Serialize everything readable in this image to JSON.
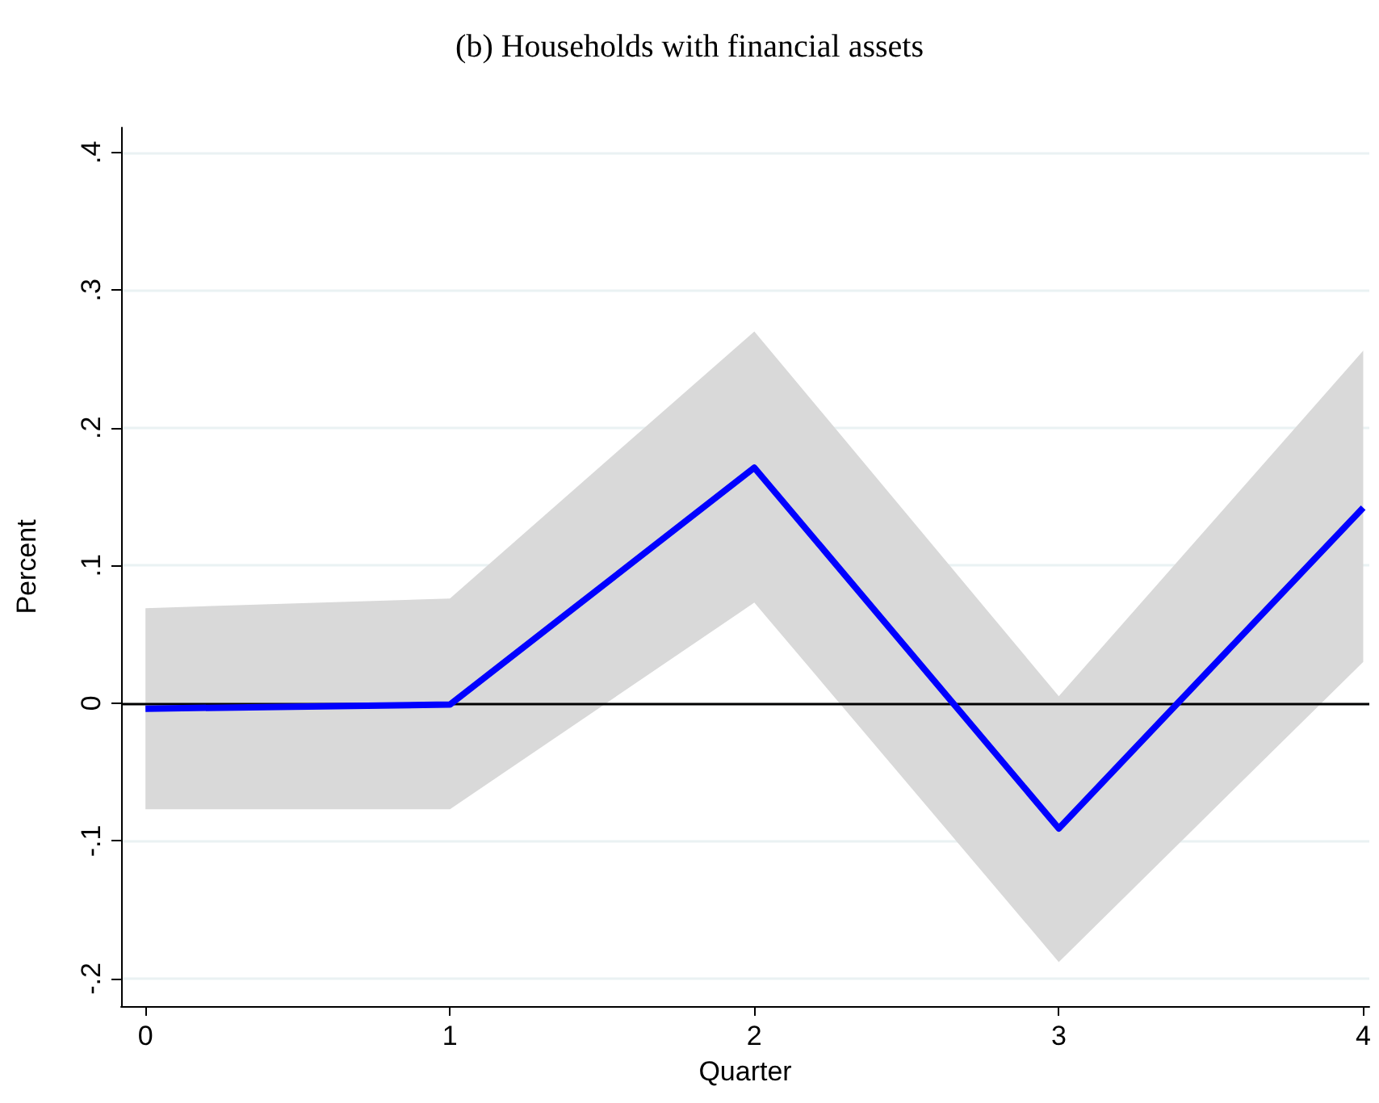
{
  "chart_data": {
    "type": "line",
    "title": "(b) Households with financial assets",
    "xlabel": "Quarter",
    "ylabel": "Percent",
    "x": [
      0,
      1,
      2,
      3,
      4
    ],
    "series": [
      {
        "color": "#0000ff",
        "values": [
          -0.004,
          -0.001,
          0.171,
          -0.091,
          0.142
        ],
        "lower": [
          -0.077,
          -0.077,
          0.073,
          -0.188,
          0.03
        ],
        "upper": [
          0.069,
          0.076,
          0.27,
          0.005,
          0.256
        ]
      }
    ],
    "xlim": [
      -0.08,
      4.02
    ],
    "xticks": [
      0,
      1,
      2,
      3,
      4
    ],
    "ylim": [
      -0.22,
      0.418
    ],
    "yticks": [
      {
        "value": -0.2,
        "label": "-.2"
      },
      {
        "value": -0.1,
        "label": "-.1"
      },
      {
        "value": 0,
        "label": "0"
      },
      {
        "value": 0.1,
        "label": ".1"
      },
      {
        "value": 0.2,
        "label": ".2"
      },
      {
        "value": 0.3,
        "label": ".3"
      },
      {
        "value": 0.4,
        "label": ".4"
      }
    ],
    "ref_lines": [
      {
        "axis": "y",
        "value": 0,
        "color": "#000000"
      }
    ],
    "grid": "y",
    "marker": "none",
    "line_style": "solid"
  }
}
